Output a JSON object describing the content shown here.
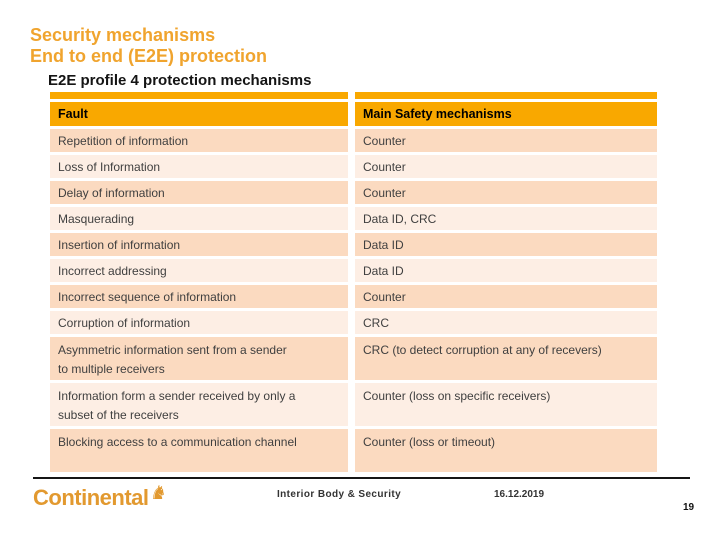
{
  "slide": {
    "title_line1": "Security mechanisms",
    "title_line2": "End to end (E2E) protection",
    "subtitle": "E2E profile 4 protection mechanisms"
  },
  "table": {
    "headers": [
      "Fault",
      "Main Safety mechanisms"
    ],
    "rows": [
      {
        "fault": "Repetition of information",
        "mechanism": "Counter"
      },
      {
        "fault": "Loss of Information",
        "mechanism": "Counter"
      },
      {
        "fault": "Delay of information",
        "mechanism": "Counter"
      },
      {
        "fault": "Masquerading",
        "mechanism": "Data ID, CRC"
      },
      {
        "fault": "Insertion of information",
        "mechanism": "Data ID"
      },
      {
        "fault": "Incorrect addressing",
        "mechanism": "Data ID"
      },
      {
        "fault": "Incorrect sequence of information",
        "mechanism": "Counter"
      },
      {
        "fault": "Corruption of information",
        "mechanism": "CRC"
      },
      {
        "fault": "Asymmetric information sent from a sender to multiple receivers",
        "mechanism": "CRC (to detect corruption at any of recevers)"
      },
      {
        "fault": "Information form a sender received by only a subset of the receivers",
        "mechanism": "Counter (loss on specific receivers)"
      },
      {
        "fault": "Blocking access to a communication channel",
        "mechanism": "Counter (loss or timeout)"
      }
    ]
  },
  "footer": {
    "logo_text": "Continental",
    "horse_icon": "♞",
    "department": "Interior Body & Security",
    "date": "16.12.2019",
    "page_number": "19"
  },
  "colors": {
    "accent_orange": "#F9A800",
    "title_orange": "#F0A42E",
    "row_dark": "#FBDAC0",
    "row_light": "#FDEEE4",
    "logo_gold": "#E2992F"
  }
}
